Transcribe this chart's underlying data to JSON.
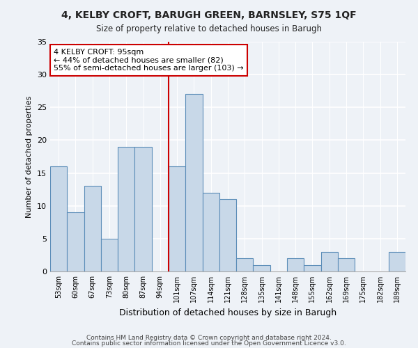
{
  "title1": "4, KELBY CROFT, BARUGH GREEN, BARNSLEY, S75 1QF",
  "title2": "Size of property relative to detached houses in Barugh",
  "xlabel": "Distribution of detached houses by size in Barugh",
  "ylabel": "Number of detached properties",
  "bar_labels": [
    "53sqm",
    "60sqm",
    "67sqm",
    "73sqm",
    "80sqm",
    "87sqm",
    "94sqm",
    "101sqm",
    "107sqm",
    "114sqm",
    "121sqm",
    "128sqm",
    "135sqm",
    "141sqm",
    "148sqm",
    "155sqm",
    "162sqm",
    "169sqm",
    "175sqm",
    "182sqm",
    "189sqm"
  ],
  "bar_values": [
    16,
    9,
    13,
    5,
    19,
    19,
    0,
    16,
    27,
    12,
    11,
    2,
    1,
    0,
    2,
    1,
    3,
    2,
    0,
    0,
    3
  ],
  "bar_color": "#c8d8e8",
  "bar_edge_color": "#5b8db8",
  "vline_color": "#cc0000",
  "annotation_line1": "4 KELBY CROFT: 95sqm",
  "annotation_line2": "← 44% of detached houses are smaller (82)",
  "annotation_line3": "55% of semi-detached houses are larger (103) →",
  "annotation_box_color": "#ffffff",
  "annotation_box_edge": "#cc0000",
  "ylim": [
    0,
    35
  ],
  "yticks": [
    0,
    5,
    10,
    15,
    20,
    25,
    30,
    35
  ],
  "footer1": "Contains HM Land Registry data © Crown copyright and database right 2024.",
  "footer2": "Contains public sector information licensed under the Open Government Licence v3.0.",
  "bg_color": "#eef2f7"
}
